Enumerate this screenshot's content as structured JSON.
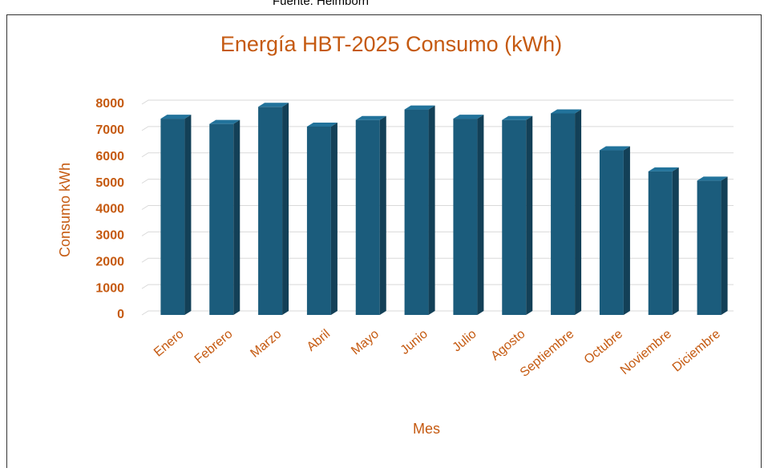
{
  "source": "Fuente: Heimborn",
  "chart_data": {
    "type": "bar3d",
    "title": "Energía HBT-2025 Consumo (kWh)",
    "x_label": "Mes",
    "y_label": "Consumo kWh",
    "categories": [
      "Enero",
      "Febrero",
      "Marzo",
      "Abril",
      "Mayo",
      "Junio",
      "Julio",
      "Agosto",
      "Septiembre",
      "Octubre",
      "Noviembre",
      "Diciembre"
    ],
    "values": [
      7450,
      7250,
      7900,
      7150,
      7400,
      7800,
      7450,
      7400,
      7650,
      6250,
      5450,
      5100
    ],
    "color": "#1b5c7c",
    "ylim": [
      0,
      8000
    ],
    "yticks": [
      0,
      1000,
      2000,
      3000,
      4000,
      5000,
      6000,
      7000,
      8000
    ],
    "grid": true
  }
}
